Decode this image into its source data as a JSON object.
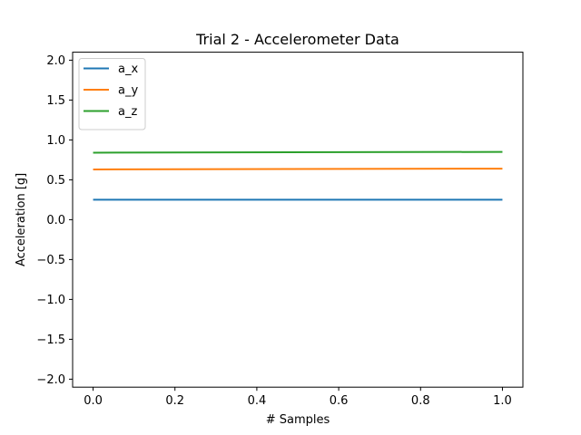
{
  "chart_data": {
    "type": "line",
    "title": "Trial 2 - Accelerometer Data",
    "xlabel": "# Samples",
    "ylabel": "Acceleration [g]",
    "xlim": [
      -0.05,
      1.05
    ],
    "ylim": [
      -2.1,
      2.1
    ],
    "xticks": [
      0.0,
      0.2,
      0.4,
      0.6,
      0.8,
      1.0
    ],
    "xtick_labels": [
      "0.0",
      "0.2",
      "0.4",
      "0.6",
      "0.8",
      "1.0"
    ],
    "yticks": [
      -2.0,
      -1.5,
      -1.0,
      -0.5,
      0.0,
      0.5,
      1.0,
      1.5,
      2.0
    ],
    "ytick_labels": [
      "−2.0",
      "−1.5",
      "−1.0",
      "−0.5",
      "0.0",
      "0.5",
      "1.0",
      "1.5",
      "2.0"
    ],
    "grid": false,
    "legend_position": "top-left",
    "series": [
      {
        "name": "a_x",
        "color": "#1f77b4",
        "x": [
          0,
          1
        ],
        "y": [
          0.25,
          0.25
        ]
      },
      {
        "name": "a_y",
        "color": "#ff7f0e",
        "x": [
          0,
          1
        ],
        "y": [
          0.63,
          0.64
        ]
      },
      {
        "name": "a_z",
        "color": "#2ca02c",
        "x": [
          0,
          1
        ],
        "y": [
          0.84,
          0.85
        ]
      }
    ]
  }
}
